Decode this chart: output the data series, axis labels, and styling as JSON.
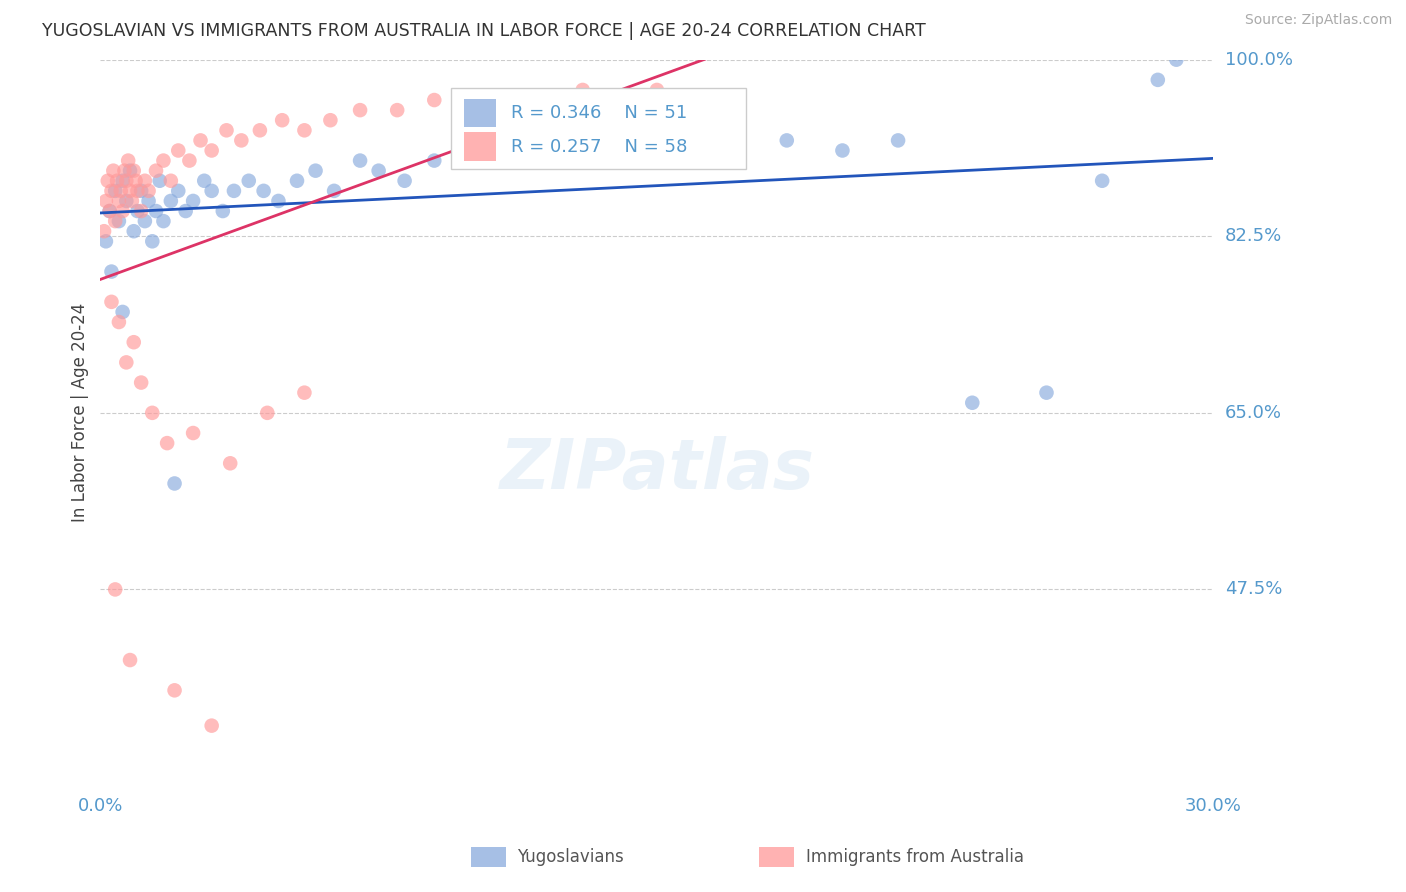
{
  "title": "YUGOSLAVIAN VS IMMIGRANTS FROM AUSTRALIA IN LABOR FORCE | AGE 20-24 CORRELATION CHART",
  "source": "Source: ZipAtlas.com",
  "ylabel": "In Labor Force | Age 20-24",
  "legend_blue_label": "Yugoslavians",
  "legend_pink_label": "Immigrants from Australia",
  "xmin": 0.0,
  "xmax": 30.0,
  "ymin": 30.0,
  "ymax": 100.0,
  "yticks": [
    47.5,
    65.0,
    82.5,
    100.0
  ],
  "blue_color": "#88aadd",
  "pink_color": "#ff9999",
  "trend_blue": "#2255bb",
  "trend_pink": "#dd3366",
  "axis_label_color": "#5599cc",
  "title_color": "#333333",
  "blue_x": [
    0.15,
    0.25,
    0.4,
    0.5,
    0.6,
    0.7,
    0.8,
    0.9,
    1.0,
    1.1,
    1.2,
    1.3,
    1.4,
    1.5,
    1.6,
    1.7,
    1.9,
    2.1,
    2.3,
    2.5,
    2.8,
    3.0,
    3.3,
    3.6,
    4.0,
    4.4,
    4.8,
    5.3,
    5.8,
    6.3,
    7.0,
    7.5,
    8.2,
    9.0,
    10.0,
    11.0,
    12.5,
    14.0,
    15.5,
    17.0,
    18.5,
    20.0,
    21.5,
    23.5,
    25.5,
    27.0,
    28.5,
    29.0,
    0.3,
    0.6,
    2.0
  ],
  "blue_y": [
    82.0,
    85.0,
    87.0,
    84.0,
    88.0,
    86.0,
    89.0,
    83.0,
    85.0,
    87.0,
    84.0,
    86.0,
    82.0,
    85.0,
    88.0,
    84.0,
    86.0,
    87.0,
    85.0,
    86.0,
    88.0,
    87.0,
    85.0,
    87.0,
    88.0,
    87.0,
    86.0,
    88.0,
    89.0,
    87.0,
    90.0,
    89.0,
    88.0,
    90.0,
    91.0,
    92.0,
    93.0,
    91.0,
    92.0,
    90.0,
    92.0,
    91.0,
    92.0,
    66.0,
    67.0,
    88.0,
    98.0,
    100.0,
    79.0,
    75.0,
    58.0
  ],
  "pink_x": [
    0.1,
    0.15,
    0.2,
    0.25,
    0.3,
    0.35,
    0.4,
    0.45,
    0.5,
    0.55,
    0.6,
    0.65,
    0.7,
    0.75,
    0.8,
    0.85,
    0.9,
    0.95,
    1.0,
    1.1,
    1.2,
    1.3,
    1.5,
    1.7,
    1.9,
    2.1,
    2.4,
    2.7,
    3.0,
    3.4,
    3.8,
    4.3,
    4.9,
    5.5,
    6.2,
    7.0,
    8.0,
    9.0,
    10.0,
    11.5,
    13.0,
    14.5,
    15.0,
    0.3,
    0.5,
    0.7,
    0.9,
    1.1,
    1.4,
    1.8,
    2.5,
    3.5,
    4.5,
    5.5,
    0.4,
    0.8,
    2.0,
    3.0
  ],
  "pink_y": [
    83.0,
    86.0,
    88.0,
    85.0,
    87.0,
    89.0,
    84.0,
    88.0,
    86.0,
    87.0,
    85.0,
    89.0,
    88.0,
    90.0,
    87.0,
    86.0,
    89.0,
    88.0,
    87.0,
    85.0,
    88.0,
    87.0,
    89.0,
    90.0,
    88.0,
    91.0,
    90.0,
    92.0,
    91.0,
    93.0,
    92.0,
    93.0,
    94.0,
    93.0,
    94.0,
    95.0,
    95.0,
    96.0,
    95.0,
    96.0,
    97.0,
    96.0,
    97.0,
    76.0,
    74.0,
    70.0,
    72.0,
    68.0,
    65.0,
    62.0,
    63.0,
    60.0,
    65.0,
    67.0,
    47.5,
    40.5,
    37.5,
    34.0
  ]
}
